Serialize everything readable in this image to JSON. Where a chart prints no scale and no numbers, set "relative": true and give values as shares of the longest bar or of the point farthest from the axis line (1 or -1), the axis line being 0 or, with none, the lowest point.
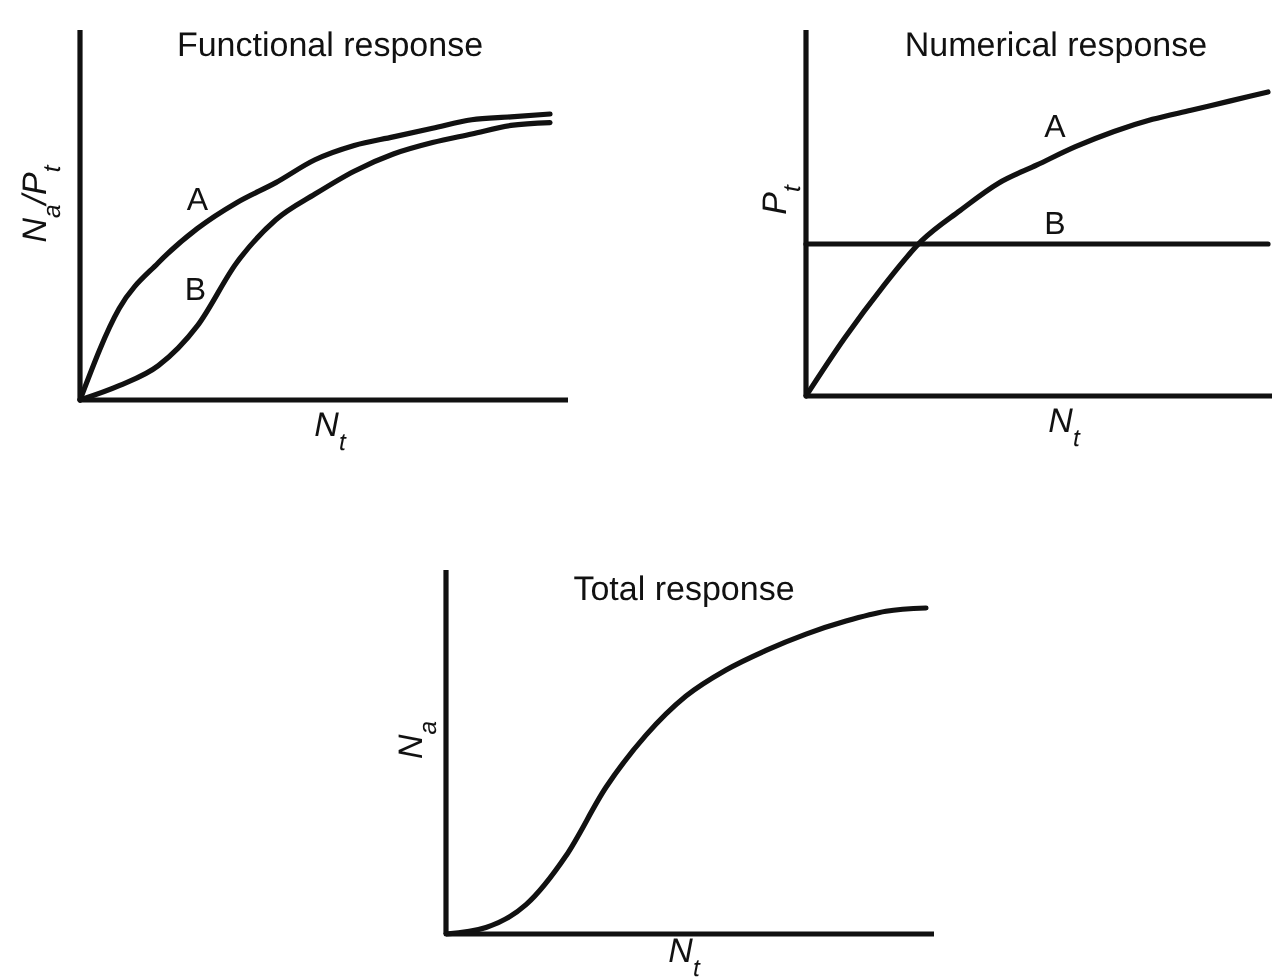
{
  "chart_data": [
    {
      "type": "line",
      "title": "Functional response",
      "xlabel": "N$_{t}$",
      "ylabel": "N$_{a}$/P$_{t}$",
      "relative": true,
      "categories": [
        null,
        null,
        null,
        null,
        null,
        null,
        null,
        null,
        null,
        null,
        null,
        null,
        null
      ],
      "series": [
        {
          "name": "A",
          "color": "#111111",
          "values": [
            0,
            0.32,
            0.48,
            0.6,
            0.69,
            0.76,
            0.84,
            0.89,
            0.92,
            0.95,
            0.98,
            0.99,
            1
          ]
        },
        {
          "name": "B",
          "color": "#111111",
          "values": [
            0,
            0.05,
            0.12,
            0.26,
            0.48,
            0.63,
            0.72,
            0.8,
            0.86,
            0.9,
            0.93,
            0.96,
            0.97
          ]
        }
      ]
    },
    {
      "type": "line",
      "title": "Numerical response",
      "xlabel": "N$_{t}$",
      "ylabel": "P$_{t}$",
      "relative": true,
      "categories": [
        null,
        null,
        null,
        null,
        null,
        null,
        null,
        null,
        null,
        null,
        null,
        null,
        null
      ],
      "series": [
        {
          "name": "A",
          "color": "#111111",
          "values": [
            0,
            0.19,
            0.36,
            0.51,
            0.61,
            0.7,
            0.76,
            0.82,
            0.87,
            0.91,
            0.94,
            0.97,
            1
          ]
        },
        {
          "name": "B",
          "color": "#111111",
          "values": [
            0.5,
            0.5,
            0.5,
            0.5,
            0.5,
            0.5,
            0.5,
            0.5,
            0.5,
            0.5,
            0.5,
            0.5,
            0.5
          ]
        }
      ]
    },
    {
      "type": "line",
      "title": "Total response",
      "xlabel": "N$_{t}$",
      "ylabel": "N$_{a}$",
      "relative": true,
      "categories": [
        null,
        null,
        null,
        null,
        null,
        null,
        null,
        null,
        null,
        null,
        null,
        null,
        null
      ],
      "color": "#111111",
      "values": [
        0,
        0.02,
        0.09,
        0.24,
        0.45,
        0.61,
        0.73,
        0.81,
        0.87,
        0.92,
        0.96,
        0.99,
        1
      ]
    }
  ]
}
